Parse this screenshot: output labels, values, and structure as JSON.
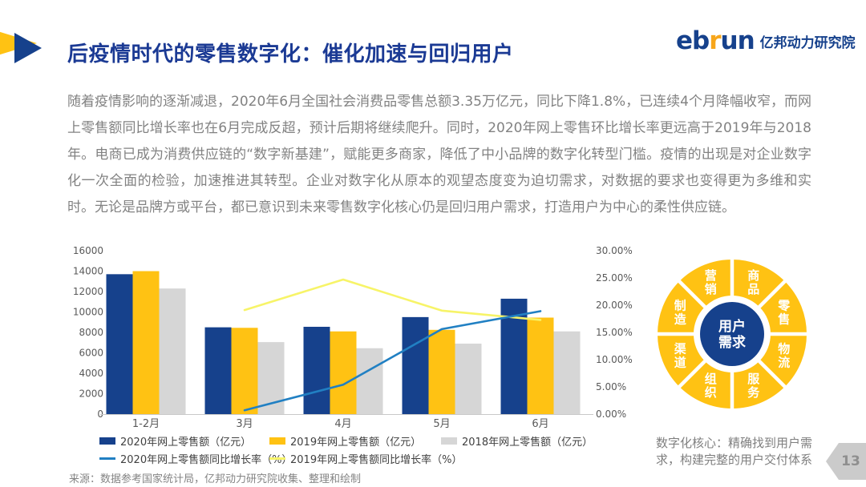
{
  "header": {
    "title": "后疫情时代的零售数字化：催化加速与回归用户",
    "logo": {
      "brand_prefix": "eb",
      "brand_accent": "r",
      "brand_suffix": "un",
      "org": "亿邦动力研究院",
      "navy": "#16418C",
      "orange": "#F7A61B"
    }
  },
  "body": {
    "paragraph": "随着疫情影响的逐渐减退，2020年6月全国社会消费品零售总额3.35万亿元，同比下降1.8%，已连续4个月降幅收窄，而网上零售额同比增长率也在6月完成反超，预计后期将继续爬升。同时，2020年网上零售环比增长率更远高于2019年与2018年。电商已成为消费供应链的“数字新基建”，赋能更多商家，降低了中小品牌的数字化转型门槛。疫情的出现是对企业数字化一次全面的检验，加速推进其转型。企业对数字化从原本的观望态度变为迫切需求，对数据的要求也变得更为多维和实时。无论是品牌方或平台，都已意识到未来零售数字化核心仍是回归用户需求，打造用户为中心的柔性供应链。"
  },
  "chart_data": {
    "type": "bar+line",
    "categories": [
      "1-2月",
      "3月",
      "4月",
      "5月",
      "6月"
    ],
    "left_axis": {
      "min": 0,
      "max": 16000,
      "step": 2000
    },
    "right_axis": {
      "min": 0,
      "max": 30,
      "step": 5,
      "suffix": "%",
      "decimals": 2
    },
    "grid": false,
    "legend_position": "bottom",
    "series": [
      {
        "name": "2020年网上零售额（亿元）",
        "type": "bar",
        "color": "#16418C",
        "values": [
          13700,
          8500,
          8550,
          9500,
          11300
        ]
      },
      {
        "name": "2019年网上零售额（亿元）",
        "type": "bar",
        "color": "#FFC213",
        "values": [
          14000,
          8450,
          8100,
          8250,
          9450
        ]
      },
      {
        "name": "2018年网上零售额（亿元）",
        "type": "bar",
        "color": "#D6D6D6",
        "values": [
          12300,
          7050,
          6450,
          6900,
          8100
        ]
      },
      {
        "name": "2020年网上零售额同比增长率（%）",
        "type": "line",
        "color": "#2180C3",
        "values": [
          null,
          0.7,
          5.4,
          15.6,
          18.9
        ]
      },
      {
        "name": "2019年网上零售额同比增长率（%）",
        "type": "line",
        "color": "#F7F468",
        "values": [
          null,
          19.1,
          24.7,
          19.0,
          17.3
        ]
      }
    ]
  },
  "source": "来源：数据参考国家统计局，亿邦动力研究院收集、整理和绘制",
  "diagram": {
    "center": "用户需求",
    "center_lines": [
      "用户",
      "需求"
    ],
    "segments": [
      "商品",
      "零售",
      "物流",
      "服务",
      "组织",
      "渠道",
      "制造",
      "营销"
    ],
    "colors": {
      "ring": "#FFC213",
      "center": "#16418C"
    }
  },
  "caption": {
    "line1": "数字化核心：精确找到用户需",
    "line2": "求，构建完整的用户交付体系"
  },
  "page_number": "13"
}
